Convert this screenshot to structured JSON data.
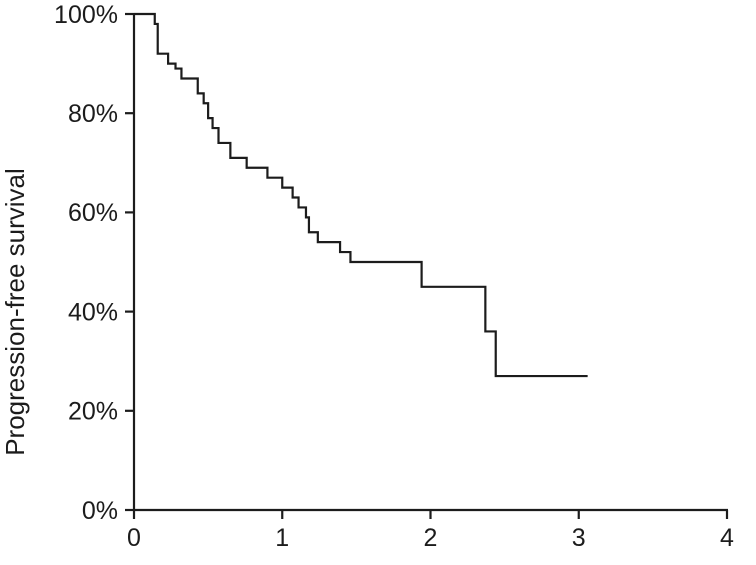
{
  "figure": {
    "background_color": "#ffffff",
    "line_color": "#1c1c1c"
  },
  "chart_data": {
    "type": "line",
    "subtype": "kaplan-meier-step-curve",
    "title": "",
    "xlabel": "",
    "ylabel": "Progression-free survival",
    "xlim": [
      0,
      4
    ],
    "ylim": [
      0,
      100
    ],
    "x_ticks": [
      0,
      1,
      2,
      3,
      4
    ],
    "x_tick_labels": [
      "0",
      "1",
      "2",
      "3",
      "4"
    ],
    "y_ticks": [
      0,
      20,
      40,
      60,
      80,
      100
    ],
    "y_tick_labels": [
      "0%",
      "20%",
      "40%",
      "60%",
      "80%",
      "100%"
    ],
    "grid": false,
    "legend_position": "none",
    "series": [
      {
        "name": "Progression-free survival",
        "color": "#1c1c1c",
        "step_points": [
          [
            0.0,
            100
          ],
          [
            0.14,
            98
          ],
          [
            0.16,
            92
          ],
          [
            0.23,
            90
          ],
          [
            0.28,
            89
          ],
          [
            0.32,
            87
          ],
          [
            0.43,
            84
          ],
          [
            0.47,
            82
          ],
          [
            0.5,
            79
          ],
          [
            0.53,
            77
          ],
          [
            0.57,
            74
          ],
          [
            0.65,
            71
          ],
          [
            0.76,
            69
          ],
          [
            0.9,
            67
          ],
          [
            1.0,
            65
          ],
          [
            1.07,
            63
          ],
          [
            1.11,
            61
          ],
          [
            1.16,
            59
          ],
          [
            1.18,
            56
          ],
          [
            1.24,
            54
          ],
          [
            1.39,
            52
          ],
          [
            1.46,
            50
          ],
          [
            1.94,
            45
          ],
          [
            2.37,
            36
          ],
          [
            2.44,
            27
          ],
          [
            3.06,
            27
          ]
        ]
      }
    ]
  }
}
